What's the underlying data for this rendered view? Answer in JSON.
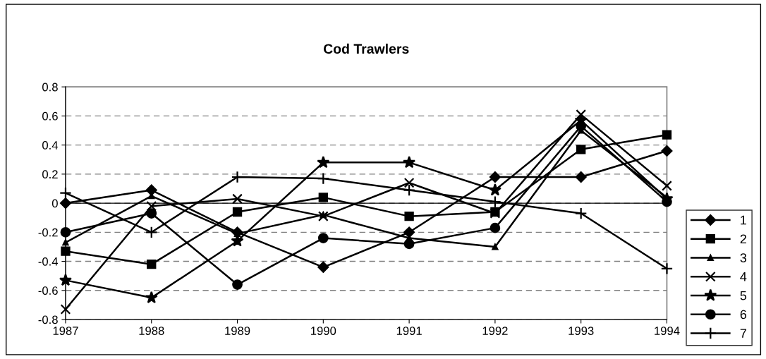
{
  "chart_data": {
    "type": "line",
    "title": "Cod Trawlers",
    "categories": [
      "1987",
      "1988",
      "1989",
      "1990",
      "1991",
      "1992",
      "1993",
      "1994"
    ],
    "series": [
      {
        "name": "1",
        "color": "#000000",
        "marker": "diamond",
        "values": [
          0,
          0.09,
          -0.2,
          -0.44,
          -0.2,
          0.18,
          0.18,
          0.36
        ]
      },
      {
        "name": "2",
        "color": "#000000",
        "marker": "square",
        "values": [
          -0.33,
          -0.42,
          -0.06,
          0.04,
          -0.09,
          -0.06,
          0.37,
          0.47
        ]
      },
      {
        "name": "3",
        "color": "#000000",
        "marker": "triangle",
        "values": [
          -0.27,
          0.05,
          -0.21,
          -0.08,
          -0.24,
          -0.3,
          0.5,
          0.04
        ]
      },
      {
        "name": "4",
        "color": "#000000",
        "marker": "x",
        "values": [
          -0.73,
          -0.02,
          0.03,
          -0.09,
          0.14,
          -0.07,
          0.61,
          0.12
        ]
      },
      {
        "name": "5",
        "color": "#000000",
        "marker": "star",
        "values": [
          -0.53,
          -0.65,
          -0.26,
          0.28,
          0.28,
          0.09,
          0.57,
          0.03
        ]
      },
      {
        "name": "6",
        "color": "#000000",
        "marker": "circle",
        "values": [
          -0.2,
          -0.07,
          -0.56,
          -0.24,
          -0.28,
          -0.17,
          0.53,
          0.01
        ]
      },
      {
        "name": "7",
        "color": "#000000",
        "marker": "cross",
        "values": [
          0.07,
          -0.2,
          0.18,
          0.17,
          0.09,
          0.01,
          -0.07,
          -0.45
        ]
      }
    ],
    "ylim": [
      -0.8,
      0.8
    ],
    "yticks": [
      {
        "value": -0.8,
        "label": "-0.8"
      },
      {
        "value": -0.6,
        "label": "-0.6"
      },
      {
        "value": -0.4,
        "label": "-0.4"
      },
      {
        "value": -0.2,
        "label": "-0.2"
      },
      0,
      0.2,
      0.4,
      0.6,
      0.8
    ],
    "grid": "y",
    "legend": "right",
    "line_style": "solid"
  }
}
